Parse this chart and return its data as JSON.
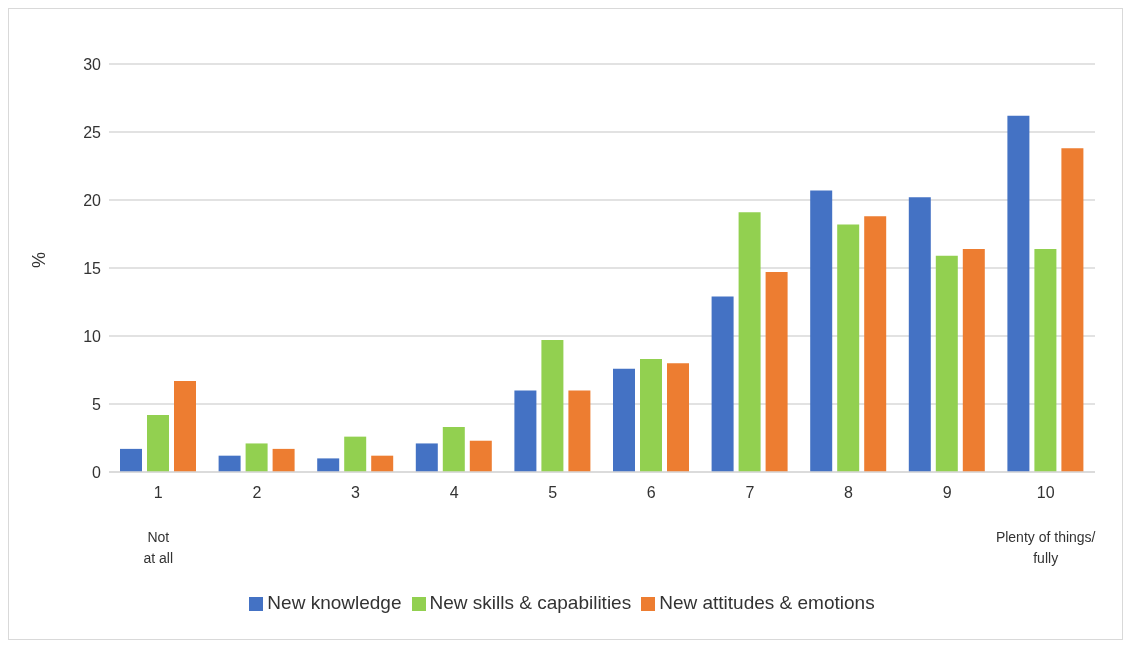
{
  "chart_data": {
    "type": "bar",
    "ylabel": "%",
    "categories": [
      "1",
      "2",
      "3",
      "4",
      "5",
      "6",
      "7",
      "8",
      "9",
      "10"
    ],
    "series": [
      {
        "name": "New knowledge",
        "color": "#4472c4",
        "values": [
          1.7,
          1.2,
          1.0,
          2.1,
          6.0,
          7.6,
          12.9,
          20.7,
          20.2,
          26.2
        ]
      },
      {
        "name": "New skills & capabilities",
        "color": "#92d050",
        "values": [
          4.2,
          2.1,
          2.6,
          3.3,
          9.7,
          8.3,
          19.1,
          18.2,
          15.9,
          16.4
        ]
      },
      {
        "name": "New attitudes & emotions",
        "color": "#ed7d31",
        "values": [
          6.7,
          1.7,
          1.2,
          2.3,
          6.0,
          8.0,
          14.7,
          18.8,
          16.4,
          23.8
        ]
      }
    ],
    "annotations": [
      "Not\nat all",
      "Plenty of things/\nfully"
    ],
    "ylim": [
      0,
      30
    ],
    "yticks": [
      0,
      5,
      10,
      15,
      20,
      25,
      30
    ],
    "grid": "y",
    "legend": "bottom"
  }
}
